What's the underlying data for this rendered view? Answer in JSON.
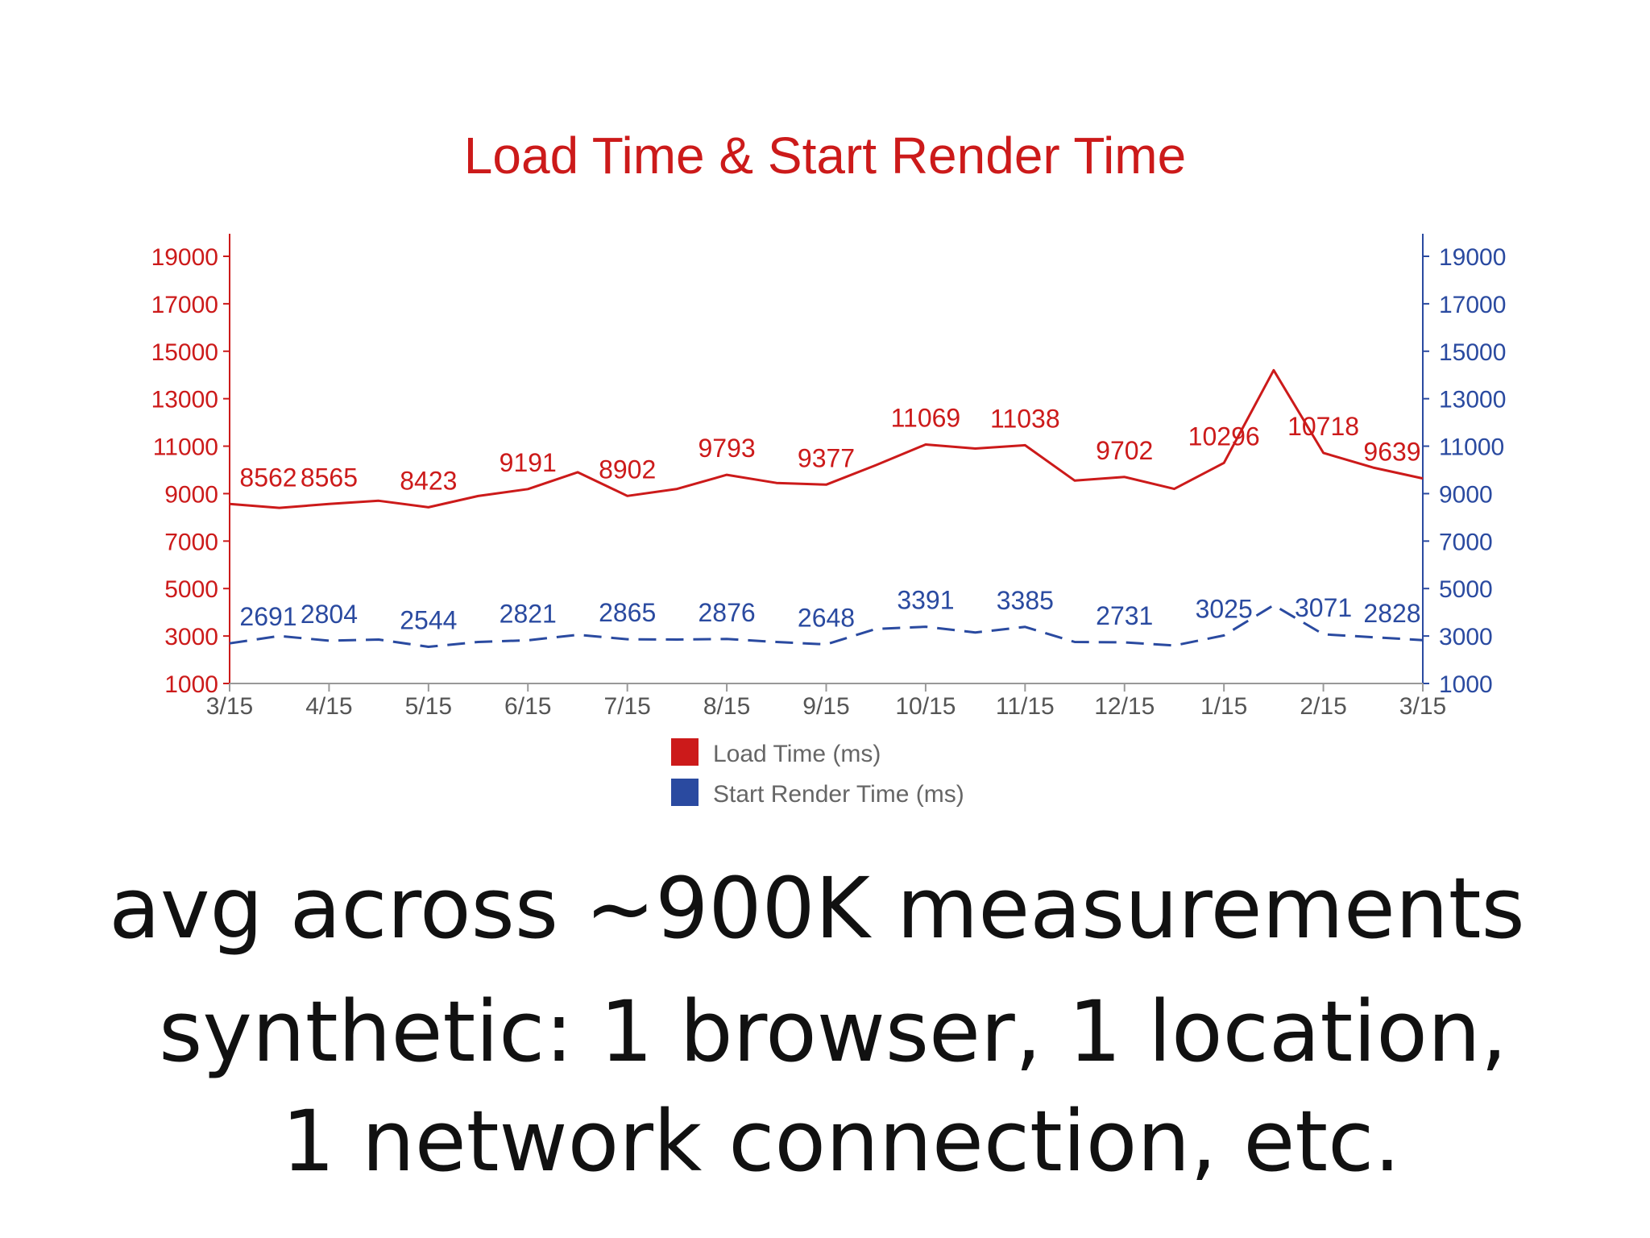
{
  "chart_data": {
    "type": "line",
    "title": "Load Time & Start Render Time",
    "x": [
      "3/15",
      "4/15",
      "5/15",
      "6/15",
      "7/15",
      "8/15",
      "9/15",
      "10/15",
      "11/15",
      "12/15",
      "1/15",
      "2/15",
      "3/15"
    ],
    "yticks": [
      1000,
      3000,
      5000,
      7000,
      9000,
      11000,
      13000,
      15000,
      17000,
      19000
    ],
    "ylim": [
      1000,
      19000
    ],
    "grid": false,
    "legend_position": "bottom",
    "colors": {
      "title": "#cc1a1a",
      "load": "#cc1a1a",
      "render": "#2a4aa0",
      "left_axis": "#cc1a1a",
      "right_axis": "#2a4aa0",
      "tick_labels": "#555555",
      "legend_text": "#666666"
    },
    "series": [
      {
        "name": "Load Time (ms)",
        "color": "#cc1a1a",
        "style": "solid",
        "axis": "left",
        "points": [
          {
            "x": "3/15",
            "y": 8562,
            "label": "8562"
          },
          {
            "x": "3/29",
            "y": 8400,
            "label": ""
          },
          {
            "x": "4/15",
            "y": 8565,
            "label": "8565"
          },
          {
            "x": "4/29",
            "y": 8700,
            "label": ""
          },
          {
            "x": "5/15",
            "y": 8423,
            "label": "8423"
          },
          {
            "x": "5/29",
            "y": 8900,
            "label": ""
          },
          {
            "x": "6/15",
            "y": 9191,
            "label": "9191"
          },
          {
            "x": "6/29",
            "y": 9900,
            "label": ""
          },
          {
            "x": "7/15",
            "y": 8902,
            "label": "8902"
          },
          {
            "x": "7/29",
            "y": 9200,
            "label": ""
          },
          {
            "x": "8/15",
            "y": 9793,
            "label": "9793"
          },
          {
            "x": "8/29",
            "y": 9450,
            "label": ""
          },
          {
            "x": "9/15",
            "y": 9377,
            "label": "9377"
          },
          {
            "x": "9/29",
            "y": 10200,
            "label": ""
          },
          {
            "x": "10/15",
            "y": 11069,
            "label": "11069"
          },
          {
            "x": "10/29",
            "y": 10900,
            "label": ""
          },
          {
            "x": "11/15",
            "y": 11038,
            "label": "11038"
          },
          {
            "x": "11/29",
            "y": 9550,
            "label": ""
          },
          {
            "x": "12/15",
            "y": 9702,
            "label": "9702"
          },
          {
            "x": "12/29",
            "y": 9200,
            "label": ""
          },
          {
            "x": "1/15",
            "y": 10296,
            "label": "10296"
          },
          {
            "x": "1/29",
            "y": 14200,
            "label": ""
          },
          {
            "x": "2/15",
            "y": 10718,
            "label": "10718"
          },
          {
            "x": "2/29",
            "y": 10100,
            "label": ""
          },
          {
            "x": "3/15b",
            "y": 9639,
            "label": "9639"
          }
        ]
      },
      {
        "name": "Start Render Time (ms)",
        "color": "#2a4aa0",
        "style": "dashed",
        "axis": "right",
        "points": [
          {
            "x": "3/15",
            "y": 2691,
            "label": "2691"
          },
          {
            "x": "3/29",
            "y": 3000,
            "label": ""
          },
          {
            "x": "4/15",
            "y": 2804,
            "label": "2804"
          },
          {
            "x": "4/29",
            "y": 2850,
            "label": ""
          },
          {
            "x": "5/15",
            "y": 2544,
            "label": "2544"
          },
          {
            "x": "5/29",
            "y": 2750,
            "label": ""
          },
          {
            "x": "6/15",
            "y": 2821,
            "label": "2821"
          },
          {
            "x": "6/29",
            "y": 3050,
            "label": ""
          },
          {
            "x": "7/15",
            "y": 2865,
            "label": "2865"
          },
          {
            "x": "7/29",
            "y": 2850,
            "label": ""
          },
          {
            "x": "8/15",
            "y": 2876,
            "label": "2876"
          },
          {
            "x": "8/29",
            "y": 2750,
            "label": ""
          },
          {
            "x": "9/15",
            "y": 2648,
            "label": "2648"
          },
          {
            "x": "9/29",
            "y": 3300,
            "label": ""
          },
          {
            "x": "10/15",
            "y": 3391,
            "label": "3391"
          },
          {
            "x": "10/29",
            "y": 3150,
            "label": ""
          },
          {
            "x": "11/15",
            "y": 3385,
            "label": "3385"
          },
          {
            "x": "11/29",
            "y": 2750,
            "label": ""
          },
          {
            "x": "12/15",
            "y": 2731,
            "label": "2731"
          },
          {
            "x": "12/29",
            "y": 2600,
            "label": ""
          },
          {
            "x": "1/15",
            "y": 3025,
            "label": "3025"
          },
          {
            "x": "1/29",
            "y": 4300,
            "label": ""
          },
          {
            "x": "2/15",
            "y": 3071,
            "label": "3071"
          },
          {
            "x": "2/29",
            "y": 2950,
            "label": ""
          },
          {
            "x": "3/15b",
            "y": 2828,
            "label": "2828"
          }
        ]
      }
    ]
  },
  "caption": {
    "line1": "avg across ~900K measurements",
    "line2": "synthetic: 1 browser, 1 location,",
    "line3": "1 network connection, etc."
  }
}
